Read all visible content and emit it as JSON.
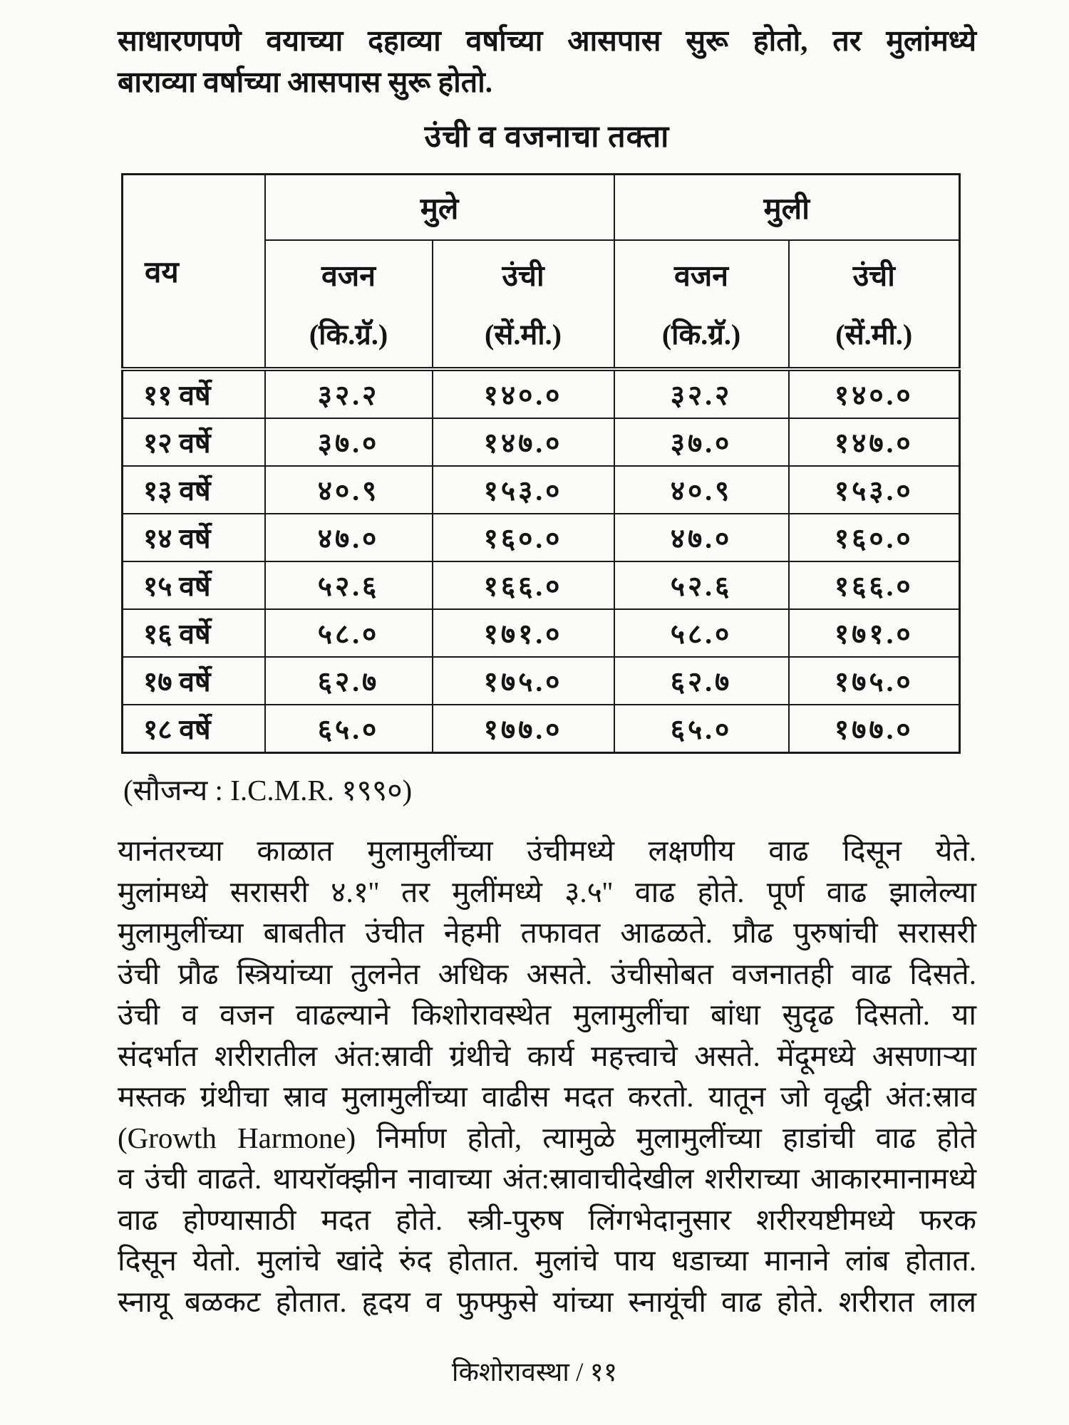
{
  "intro": {
    "lines": [
      "साधारणपणे वयाच्या दहाव्या वर्षाच्या आसपास सुरू होतो, तर मुलांमध्ये",
      "बाराव्या वर्षाच्या आसपास सुरू होतो."
    ]
  },
  "table_title": "उंची व वजनाचा तक्ता",
  "table": {
    "age_header": "वय",
    "group_headers": [
      "मुले",
      "मुली"
    ],
    "sub_headers": [
      {
        "label": "वजन",
        "unit": "(कि.ग्रॅ.)"
      },
      {
        "label": "उंची",
        "unit": "(सें.मी.)"
      },
      {
        "label": "वजन",
        "unit": "(कि.ग्रॅ.)"
      },
      {
        "label": "उंची",
        "unit": "(सें.मी.)"
      }
    ],
    "rows": [
      {
        "age": "११ वर्षे",
        "cells": [
          "३२.२",
          "१४०.०",
          "३२.२",
          "१४०.०"
        ]
      },
      {
        "age": "१२ वर्षे",
        "cells": [
          "३७.०",
          "१४७.०",
          "३७.०",
          "१४७.०"
        ]
      },
      {
        "age": "१३ वर्षे",
        "cells": [
          "४०.९",
          "१५३.०",
          "४०.९",
          "१५३.०"
        ]
      },
      {
        "age": "१४ वर्षे",
        "cells": [
          "४७.०",
          "१६०.०",
          "४७.०",
          "१६०.०"
        ]
      },
      {
        "age": "१५ वर्षे",
        "cells": [
          "५२.६",
          "१६६.०",
          "५२.६",
          "१६६.०"
        ]
      },
      {
        "age": "१६ वर्षे",
        "cells": [
          "५८.०",
          "१७१.०",
          "५८.०",
          "१७१.०"
        ]
      },
      {
        "age": "१७ वर्षे",
        "cells": [
          "६२.७",
          "१७५.०",
          "६२.७",
          "१७५.०"
        ]
      },
      {
        "age": "१८ वर्षे",
        "cells": [
          "६५.०",
          "१७७.०",
          "६५.०",
          "१७७.०"
        ]
      }
    ]
  },
  "source_note": "(सौजन्य : I.C.M.R. १९९०)",
  "paragraph": {
    "lines": [
      "यानंतरच्या काळात मुलामुलींच्या उंचीमध्ये लक्षणीय वाढ दिसून येते.",
      "मुलांमध्ये सरासरी ४.१'' तर मुलींमध्ये ३.५'' वाढ होते. पूर्ण वाढ झालेल्या",
      "मुलामुलींच्या बाबतीत उंचीत नेहमी तफावत आढळते. प्रौढ पुरुषांची सरासरी",
      "उंची प्रौढ स्त्रियांच्या तुलनेत अधिक असते. उंचीसोबत वजनातही वाढ दिसते.",
      "उंची व वजन वाढल्याने किशोरावस्थेत मुलामुलींचा बांधा सुदृढ दिसतो. या",
      "संदर्भात शरीरातील अंत:स्रावी ग्रंथीचे कार्य महत्त्वाचे असते. मेंदूमध्ये असणाऱ्या",
      "मस्तक ग्रंथीचा स्राव मुलामुलींच्या वाढीस मदत करतो. यातून जो वृद्धी अंत:स्राव",
      "(Growth Harmone) निर्माण होतो, त्यामुळे मुलामुलींच्या हाडांची वाढ होते",
      "व उंची वाढते. थायरॉक्झीन नावाच्या अंत:स्रावाचीदेखील शरीराच्या आकारमानामध्ये",
      "वाढ होण्यासाठी मदत होते. स्त्री-पुरुष लिंगभेदानुसार शरीरयष्टीमध्ये फरक",
      "दिसून येतो. मुलांचे खांदे रुंद होतात. मुलांचे पाय धडाच्या मानाने लांब होतात.",
      "स्नायू बळकट होतात. हृदय व फुफ्फुसे यांच्या स्नायूंची वाढ होते. शरीरात लाल"
    ]
  },
  "footer": "किशोरावस्था / ११"
}
